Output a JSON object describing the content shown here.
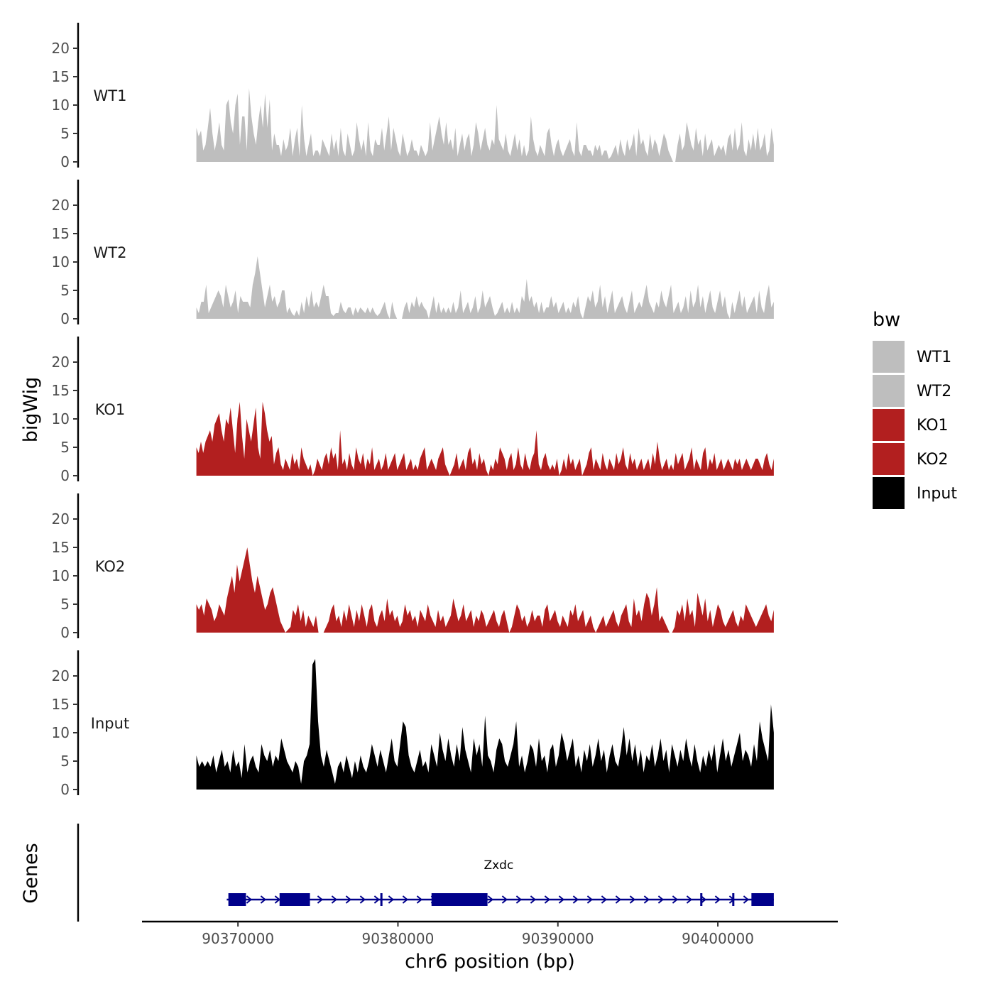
{
  "chart_data": {
    "type": "area",
    "title": "",
    "ylabel": "bigWig",
    "xlabel": "chr6 position (bp)",
    "xlim": [
      90364000,
      90407500
    ],
    "data_xlim": [
      90367400,
      90403500
    ],
    "ylim": [
      0,
      24
    ],
    "yticks": [
      0,
      5,
      10,
      15,
      20
    ],
    "xticks": [
      90370000,
      90380000,
      90390000,
      90400000
    ],
    "xtick_labels": [
      "90370000",
      "90380000",
      "90390000",
      "90400000"
    ],
    "grid": false,
    "legend_title": "bw",
    "legend_position": "right",
    "series": [
      {
        "name": "WT1",
        "color": "#bebebe",
        "values": [
          6,
          4.5,
          5.5,
          2,
          3,
          6,
          9.5,
          5,
          2,
          4,
          7,
          3,
          2,
          10,
          11,
          7,
          5,
          10,
          12,
          3,
          8,
          8,
          2,
          13,
          8,
          5,
          3,
          7,
          10,
          6,
          12,
          6,
          11,
          2,
          5,
          3,
          3,
          1,
          4,
          2,
          3,
          6,
          1,
          4,
          6,
          1,
          10,
          4,
          1,
          3,
          5,
          1,
          2,
          2,
          1,
          4,
          3,
          2,
          1,
          5,
          2,
          4,
          1,
          6,
          2,
          1,
          5,
          3,
          1,
          2,
          7,
          4,
          2,
          4,
          1,
          7,
          2,
          1,
          4,
          3,
          3,
          6,
          2,
          5,
          8,
          2,
          6,
          4,
          2,
          1,
          5,
          3,
          1,
          2,
          4,
          2,
          2,
          1,
          3,
          2,
          1,
          2,
          7,
          2,
          4,
          6,
          8,
          5,
          3,
          7,
          3,
          4,
          2,
          6,
          1,
          3,
          5,
          2,
          4,
          5,
          1,
          3,
          7,
          5,
          2,
          4,
          6,
          3,
          2,
          4,
          3,
          10,
          4,
          3,
          2,
          5,
          2,
          1,
          3,
          5,
          2,
          4,
          1,
          3,
          1,
          2,
          8,
          4,
          2,
          1,
          3,
          2,
          1,
          5,
          6,
          3,
          1,
          3,
          4,
          2,
          1,
          2,
          3,
          4,
          2,
          1,
          7,
          2,
          1,
          3,
          3,
          2,
          2,
          1,
          3,
          2,
          3,
          1,
          2,
          2,
          0.5,
          1,
          2,
          3,
          1,
          4,
          2,
          1,
          4,
          2,
          3,
          5,
          1,
          6,
          3,
          4,
          2,
          1,
          5,
          2,
          4,
          3,
          1,
          3,
          5,
          4,
          2,
          1,
          0,
          0,
          3,
          5,
          2,
          3,
          7,
          5,
          3,
          2,
          6,
          3,
          4,
          1,
          5,
          2,
          3,
          4,
          1,
          2,
          3,
          2,
          3,
          1,
          4,
          5,
          2,
          6,
          2,
          3,
          7,
          2,
          1,
          4,
          2,
          5,
          2,
          6,
          2,
          3,
          5,
          1,
          2,
          6,
          3
        ]
      },
      {
        "name": "WT2",
        "color": "#bebebe",
        "values": [
          2,
          1,
          3,
          3,
          6,
          1,
          2,
          3,
          4,
          5,
          4,
          2,
          6,
          4,
          2,
          3,
          5,
          1,
          4,
          3,
          3,
          3,
          2,
          6,
          8,
          11,
          8,
          5,
          2,
          4,
          6,
          3,
          4,
          2,
          3,
          5,
          5,
          1,
          2,
          1,
          0.5,
          1.5,
          0.5,
          3,
          1,
          4,
          2,
          5,
          2,
          3,
          2,
          4,
          6,
          4,
          4,
          1,
          0.5,
          1,
          1,
          3,
          1.5,
          1,
          2,
          2,
          0.5,
          2,
          1,
          2,
          1.5,
          1,
          2,
          1,
          2,
          1,
          0.5,
          1,
          2,
          3,
          1,
          0,
          3,
          1,
          0,
          0,
          0,
          2,
          3,
          1,
          3,
          2,
          4,
          2,
          3,
          2,
          1.5,
          0,
          2,
          4,
          1,
          3,
          1,
          2,
          1,
          2,
          1,
          3,
          1,
          2,
          5,
          1,
          2,
          3,
          1,
          2,
          4,
          1,
          2,
          5,
          2,
          3,
          4,
          2,
          0.5,
          1,
          2,
          3,
          1,
          2,
          1,
          3,
          1,
          2,
          1,
          4,
          3,
          7,
          3,
          4,
          2,
          3,
          1,
          3,
          1,
          2,
          2,
          4,
          2,
          3,
          1,
          2,
          3,
          1,
          2,
          1,
          3,
          2,
          4,
          1,
          0,
          2,
          4,
          3,
          5,
          2,
          3,
          6,
          2,
          4,
          1,
          3,
          5,
          1,
          2,
          3,
          4,
          2,
          1,
          3,
          5,
          1,
          2,
          3,
          2,
          4,
          6,
          3,
          2,
          1,
          3,
          2,
          5,
          3,
          2,
          4,
          6,
          1,
          2,
          3,
          1,
          2,
          4,
          1,
          5,
          2,
          3,
          6,
          2,
          4,
          1,
          3,
          5,
          2,
          1,
          3,
          5,
          2,
          4,
          1,
          0,
          3,
          1,
          3,
          5,
          2,
          4,
          1,
          2,
          3,
          4,
          1,
          5,
          2,
          1,
          4,
          6,
          2,
          3
        ]
      },
      {
        "name": "KO1",
        "color": "#b21f1f",
        "values": [
          5,
          4,
          6,
          4,
          6,
          7,
          8,
          6,
          9,
          10,
          11,
          8,
          6,
          10,
          9,
          12,
          8,
          4,
          10,
          13,
          7,
          3,
          10,
          8,
          6,
          9,
          12,
          5,
          3,
          13,
          11,
          8,
          6,
          7,
          2,
          4,
          5,
          2,
          1,
          3,
          2,
          1,
          4,
          2,
          3,
          1,
          5,
          3,
          2,
          1,
          2,
          0,
          1,
          3,
          2,
          1,
          3,
          4,
          2,
          5,
          3,
          4,
          1,
          8,
          2,
          3,
          1,
          4,
          2,
          1,
          5,
          3,
          2,
          4,
          1,
          3,
          2,
          5,
          1,
          2,
          3,
          1,
          2,
          4,
          1,
          2,
          3,
          4,
          1,
          2,
          3,
          4,
          1,
          2,
          3,
          1,
          2,
          1,
          3,
          4,
          5,
          1,
          2,
          3,
          2,
          1,
          3,
          4,
          5,
          2,
          1,
          0,
          1,
          2,
          4,
          1,
          2,
          3,
          1,
          4,
          5,
          2,
          3,
          1,
          4,
          2,
          3,
          1,
          0,
          2,
          1,
          3,
          2,
          5,
          4,
          3,
          1,
          3,
          4,
          1,
          2,
          5,
          2,
          1,
          4,
          2,
          1,
          3,
          4,
          8,
          2,
          1,
          3,
          4,
          2,
          1,
          2,
          1,
          3,
          0,
          1,
          3,
          1,
          4,
          2,
          3,
          1,
          2,
          3,
          0,
          1,
          2,
          4,
          5,
          1,
          3,
          2,
          1,
          4,
          2,
          1,
          3,
          2,
          1,
          4,
          2,
          3,
          5,
          2,
          1,
          4,
          2,
          3,
          1,
          2,
          3,
          1,
          2,
          3,
          1,
          4,
          2,
          6,
          3,
          1,
          2,
          3,
          1,
          2,
          1,
          4,
          2,
          3,
          4,
          1,
          2,
          3,
          5,
          1,
          3,
          2,
          1,
          4,
          5,
          1,
          3,
          2,
          4,
          1,
          2,
          3,
          1,
          2,
          3,
          2,
          1,
          3,
          2,
          3,
          1,
          2,
          3,
          2,
          1,
          2,
          3,
          3,
          2,
          1,
          3,
          4,
          2,
          1,
          3
        ]
      },
      {
        "name": "KO2",
        "color": "#b21f1f",
        "values": [
          5,
          4,
          5,
          3,
          6,
          5,
          4,
          2,
          3,
          5,
          4,
          3,
          6,
          8,
          10,
          7,
          12,
          9,
          11,
          13,
          15,
          12,
          9,
          7,
          10,
          8,
          6,
          4,
          5,
          7,
          8,
          6,
          4,
          2,
          1,
          0,
          0.5,
          1,
          4,
          3,
          5,
          2,
          4,
          1,
          3,
          2,
          1,
          3,
          0,
          0,
          0,
          1,
          2,
          4,
          5,
          2,
          3,
          1,
          4,
          2,
          5,
          3,
          1,
          4,
          2,
          5,
          3,
          1,
          4,
          5,
          2,
          1,
          3,
          4,
          2,
          6,
          3,
          4,
          2,
          3,
          1,
          2,
          5,
          3,
          4,
          2,
          3,
          1,
          4,
          3,
          2,
          5,
          3,
          2,
          1,
          4,
          2,
          3,
          1,
          2,
          3,
          6,
          4,
          2,
          3,
          5,
          2,
          3,
          4,
          1,
          3,
          2,
          4,
          3,
          1,
          2,
          3,
          4,
          2,
          1,
          3,
          4,
          2,
          0,
          1,
          3,
          5,
          4,
          2,
          3,
          1,
          2,
          4,
          2,
          3,
          3,
          1,
          4,
          5,
          2,
          3,
          4,
          2,
          1,
          3,
          2,
          1,
          4,
          3,
          5,
          2,
          3,
          4,
          1,
          2,
          3,
          1,
          0,
          1,
          2,
          3,
          1,
          2,
          3,
          4,
          2,
          1,
          3,
          4,
          5,
          2,
          1,
          6,
          3,
          4,
          2,
          5,
          7,
          6,
          3,
          5,
          8,
          2,
          3,
          2,
          1,
          0,
          0,
          1,
          4,
          3,
          5,
          2,
          6,
          3,
          4,
          1,
          7,
          5,
          3,
          6,
          2,
          4,
          1,
          3,
          5,
          4,
          2,
          1,
          2,
          3,
          4,
          2,
          1,
          3,
          2,
          5,
          4,
          3,
          2,
          1,
          2,
          3,
          4,
          5,
          3,
          2,
          4
        ]
      },
      {
        "name": "Input",
        "color": "#000000",
        "values": [
          6,
          4,
          5,
          4,
          5,
          4,
          6,
          3,
          5,
          7,
          4,
          5,
          3,
          7,
          4,
          5,
          2,
          8,
          3,
          5,
          6,
          4,
          3,
          8,
          6,
          5,
          7,
          4,
          6,
          5,
          9,
          7,
          5,
          4,
          3,
          5,
          4,
          1,
          5,
          6,
          8,
          22,
          23,
          12,
          6,
          4,
          7,
          5,
          3,
          1,
          4,
          5,
          3,
          6,
          4,
          2,
          5,
          3,
          6,
          4,
          3,
          5,
          8,
          6,
          4,
          7,
          5,
          3,
          6,
          9,
          5,
          4,
          8,
          12,
          11,
          6,
          4,
          3,
          5,
          7,
          4,
          5,
          3,
          8,
          6,
          4,
          10,
          7,
          5,
          9,
          6,
          4,
          8,
          5,
          11,
          7,
          5,
          3,
          9,
          6,
          8,
          4,
          13,
          6,
          5,
          3,
          7,
          9,
          8,
          5,
          4,
          6,
          8,
          12,
          4,
          6,
          3,
          5,
          8,
          7,
          4,
          9,
          5,
          6,
          3,
          7,
          8,
          4,
          6,
          10,
          8,
          5,
          7,
          9,
          4,
          6,
          3,
          7,
          5,
          8,
          4,
          6,
          9,
          5,
          7,
          3,
          6,
          8,
          5,
          4,
          7,
          11,
          6,
          9,
          5,
          8,
          4,
          7,
          3,
          6,
          5,
          8,
          4,
          6,
          9,
          5,
          7,
          3,
          8,
          6,
          4,
          7,
          5,
          9,
          6,
          4,
          8,
          5,
          3,
          6,
          4,
          7,
          5,
          8,
          3,
          6,
          9,
          5,
          7,
          4,
          6,
          8,
          10,
          5,
          7,
          6,
          4,
          8,
          5,
          12,
          9,
          7,
          5,
          15,
          10
        ]
      }
    ],
    "tracks": [
      "WT1",
      "WT2",
      "KO1",
      "KO2",
      "Input"
    ],
    "legend": [
      {
        "label": "WT1",
        "color": "#bebebe"
      },
      {
        "label": "WT2",
        "color": "#bebebe"
      },
      {
        "label": "KO1",
        "color": "#b21f1f"
      },
      {
        "label": "KO2",
        "color": "#b21f1f"
      },
      {
        "label": "Input",
        "color": "#000000"
      }
    ],
    "genes_panel": {
      "title": "Genes",
      "gene_name": "Zxdc",
      "strand": "+",
      "color": "#00008b",
      "exons": [
        {
          "start": 90369400,
          "end": 90370500
        },
        {
          "start": 90372600,
          "end": 90374500
        },
        {
          "start": 90378900,
          "end": 90379000
        },
        {
          "start": 90382100,
          "end": 90385600
        },
        {
          "start": 90398900,
          "end": 90399000
        },
        {
          "start": 90400900,
          "end": 90401000
        },
        {
          "start": 90402100,
          "end": 90403500
        }
      ],
      "span": [
        90369300,
        90403500
      ]
    }
  }
}
